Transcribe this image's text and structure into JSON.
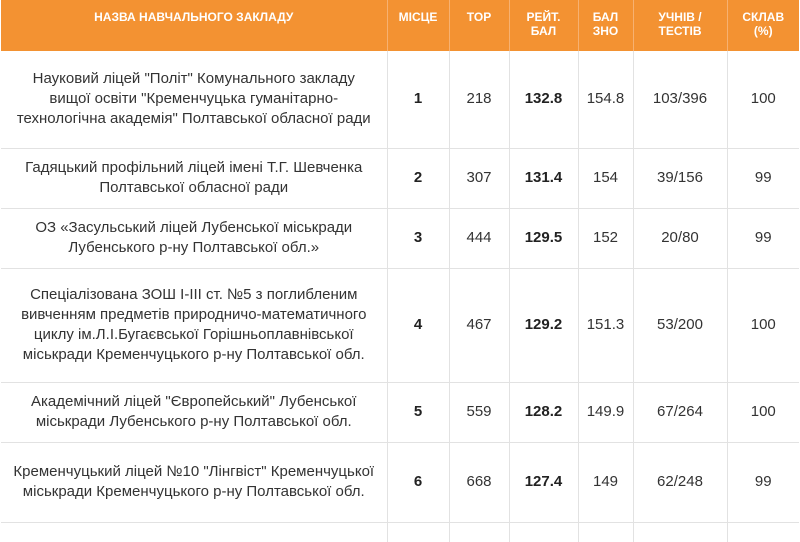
{
  "header": {
    "name": "НАЗВА НАВЧАЛЬНОГО ЗАКЛАДУ",
    "place": "МІСЦЕ",
    "top": "TOP",
    "rating": [
      "РЕЙТ.",
      "БАЛ"
    ],
    "bal_zno": [
      "БАЛ",
      "ЗНО"
    ],
    "students": [
      "УЧНІВ /",
      "ТЕСТІВ"
    ],
    "composition": [
      "СКЛАВ",
      "(%)"
    ]
  },
  "rows": [
    {
      "name": "Науковий ліцей \"Політ\" Комунального закладу вищої освіти \"Кременчуцька гуманітарно-технологічна академія\" Полтавської обласної ради",
      "place": "1",
      "top": "218",
      "rating": "132.8",
      "bal": "154.8",
      "students": "103/396",
      "pct": "100"
    },
    {
      "name": "Гадяцький профільний ліцей імені Т.Г. Шевченка Полтавської обласної ради",
      "place": "2",
      "top": "307",
      "rating": "131.4",
      "bal": "154",
      "students": "39/156",
      "pct": "99"
    },
    {
      "name": "ОЗ «Засульський ліцей Лубенської міськради Лубенського р-ну Полтавської обл.»",
      "place": "3",
      "top": "444",
      "rating": "129.5",
      "bal": "152",
      "students": "20/80",
      "pct": "99"
    },
    {
      "name": "Спеціалізована ЗОШ І-ІІІ ст. №5 з поглибленим вивченням предметів природничо-математичного циклу ім.Л.І.Бугаєвської Горішньоплавнівської міськради Кременчуцького р-ну Полтавської обл.",
      "place": "4",
      "top": "467",
      "rating": "129.2",
      "bal": "151.3",
      "students": "53/200",
      "pct": "100"
    },
    {
      "name": "Академічний ліцей \"Європейський\" Лубенської міськради Лубенського р-ну Полтавської обл.",
      "place": "5",
      "top": "559",
      "rating": "128.2",
      "bal": "149.9",
      "students": "67/264",
      "pct": "100"
    },
    {
      "name": "Кременчуцький ліцей №10 \"Лінгвіст\" Кременчуцької міськради Кременчуцького р-ну Полтавської обл.",
      "place": "6",
      "top": "668",
      "rating": "127.4",
      "bal": "149",
      "students": "62/248",
      "pct": "99"
    }
  ]
}
